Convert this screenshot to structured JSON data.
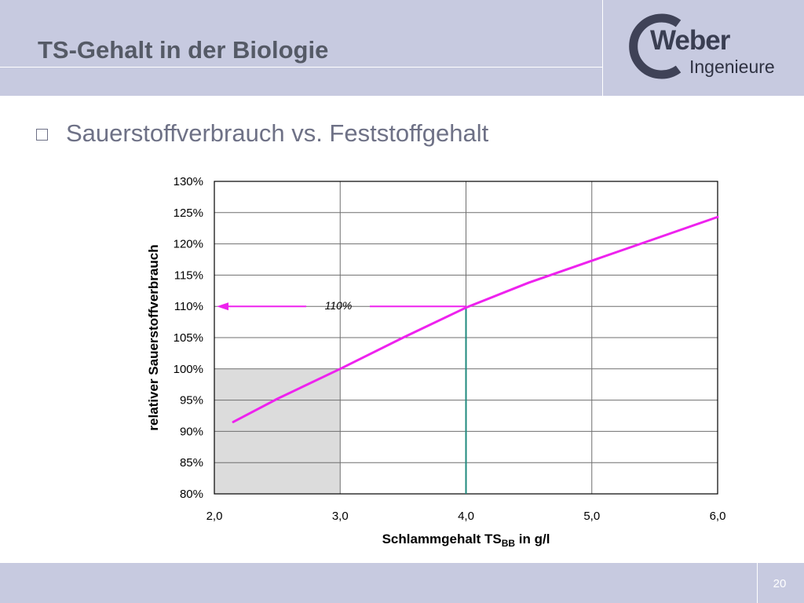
{
  "slide": {
    "title": "TS-Gehalt in der Biologie",
    "bullet": "Sauerstoffverbrauch vs. Feststoffgehalt",
    "page_number": "20"
  },
  "logo": {
    "main": "Weber",
    "sub": "Ingenieure"
  },
  "colors": {
    "header_band": "#c7cae0",
    "curve": "#ee22ee",
    "vertical_marker": "#1f8a7e",
    "shade": "#dcdcdc",
    "logo_ring": "#3f4257"
  },
  "chart_data": {
    "type": "line",
    "x": [
      2.15,
      2.5,
      3.0,
      3.5,
      4.0,
      4.5,
      5.0,
      5.5,
      6.0
    ],
    "series": [
      {
        "values": [
          91.5,
          95.2,
          100.0,
          105.0,
          109.8,
          113.8,
          117.3,
          120.8,
          124.3
        ]
      }
    ],
    "xlabel_main": "Schlammgehalt TS",
    "xlabel_sub": "BB",
    "xlabel_tail": " in g/l",
    "ylabel": "relativer Sauerstoffverbrauch",
    "xlim": [
      2.0,
      6.0
    ],
    "ylim": [
      80,
      130
    ],
    "x_ticks": [
      2.0,
      3.0,
      4.0,
      5.0,
      6.0
    ],
    "x_tick_labels": [
      "2,0",
      "3,0",
      "4,0",
      "5,0",
      "6,0"
    ],
    "y_ticks": [
      80,
      85,
      90,
      95,
      100,
      105,
      110,
      115,
      120,
      125,
      130
    ],
    "y_tick_labels": [
      "80%",
      "85%",
      "90%",
      "95%",
      "100%",
      "105%",
      "110%",
      "115%",
      "120%",
      "125%",
      "130%"
    ],
    "grid": true,
    "shaded_region": {
      "x": [
        2.0,
        3.0
      ],
      "y": [
        80,
        100
      ]
    },
    "annotation": {
      "label": "110%",
      "x": 4.0,
      "y": 110
    }
  }
}
